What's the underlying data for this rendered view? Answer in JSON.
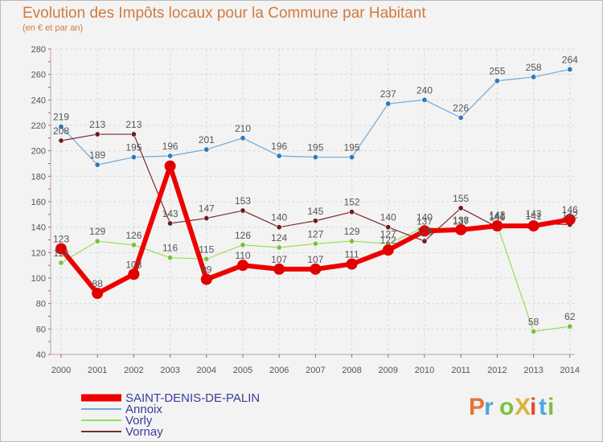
{
  "header": {
    "title": "Evolution des Impôts locaux pour la Commune par Habitant",
    "subtitle": "(en € et par an)"
  },
  "logo": {
    "text": "ProXiti",
    "colors": [
      "#e6733a",
      "#4fa6d8",
      "#7fbf3f",
      "#d9b43a",
      "#e34c26",
      "#4fa6d8",
      "#7fbf3f"
    ]
  },
  "chart_data": {
    "type": "line",
    "title": "Evolution des Impôts locaux pour la Commune par Habitant",
    "subtitle": "(en € et par an)",
    "xlabel": "",
    "ylabel": "",
    "x": [
      "2000",
      "2001",
      "2002",
      "2003",
      "2004",
      "2005",
      "2006",
      "2007",
      "2008",
      "2009",
      "2010",
      "2011",
      "2012",
      "2013",
      "2014"
    ],
    "ylim": [
      40,
      280
    ],
    "yticks": [
      40,
      60,
      80,
      100,
      120,
      140,
      160,
      180,
      200,
      220,
      240,
      260,
      280
    ],
    "grid": true,
    "legend_position": "bottom-left",
    "series": [
      {
        "name": "SAINT-DENIS-DE-PALIN",
        "color": "#ee0000",
        "point_color": "#e00000",
        "label_color": "#4a4a4a",
        "width": 6,
        "values": [
          123,
          88,
          103,
          188,
          99,
          110,
          107,
          107,
          111,
          122,
          137,
          138,
          141,
          141,
          146
        ],
        "labels": [
          "123",
          "88",
          "103",
          "",
          "99",
          "110",
          "107",
          "107",
          "111",
          "122",
          "137",
          "138",
          "141",
          "141",
          "146"
        ]
      },
      {
        "name": "Annoix",
        "color": "#6ea8d6",
        "point_color": "#2f79b8",
        "label_color": "#4a4a4a",
        "width": 1.2,
        "values": [
          219,
          189,
          195,
          196,
          201,
          210,
          196,
          195,
          195,
          237,
          240,
          226,
          255,
          258,
          264
        ],
        "labels": [
          "219",
          "189",
          "195",
          "196",
          "201",
          "210",
          "196",
          "195",
          "195",
          "237",
          "240",
          "226",
          "255",
          "258",
          "264"
        ]
      },
      {
        "name": "Vorly",
        "color": "#99dd55",
        "point_color": "#76c33a",
        "label_color": "#4a4a4a",
        "width": 1.2,
        "values": [
          112,
          129,
          126,
          116,
          115,
          126,
          124,
          127,
          129,
          127,
          140,
          137,
          142,
          58,
          62
        ],
        "labels": [
          "112",
          "129",
          "126",
          "116",
          "115",
          "126",
          "124",
          "127",
          "129",
          "127",
          "140",
          "137",
          "142",
          "58",
          "62"
        ]
      },
      {
        "name": "Vornay",
        "color": "#7a2a2a",
        "point_color": "#6b1e1e",
        "label_color": "#4a4a4a",
        "width": 1.2,
        "values": [
          208,
          213,
          213,
          143,
          147,
          153,
          140,
          145,
          152,
          140,
          129,
          155,
          140,
          143,
          142
        ],
        "labels": [
          "208",
          "213",
          "213",
          "143",
          "147",
          "153",
          "140",
          "145",
          "152",
          "140",
          "129",
          "155",
          "140",
          "143",
          "142"
        ]
      }
    ]
  }
}
